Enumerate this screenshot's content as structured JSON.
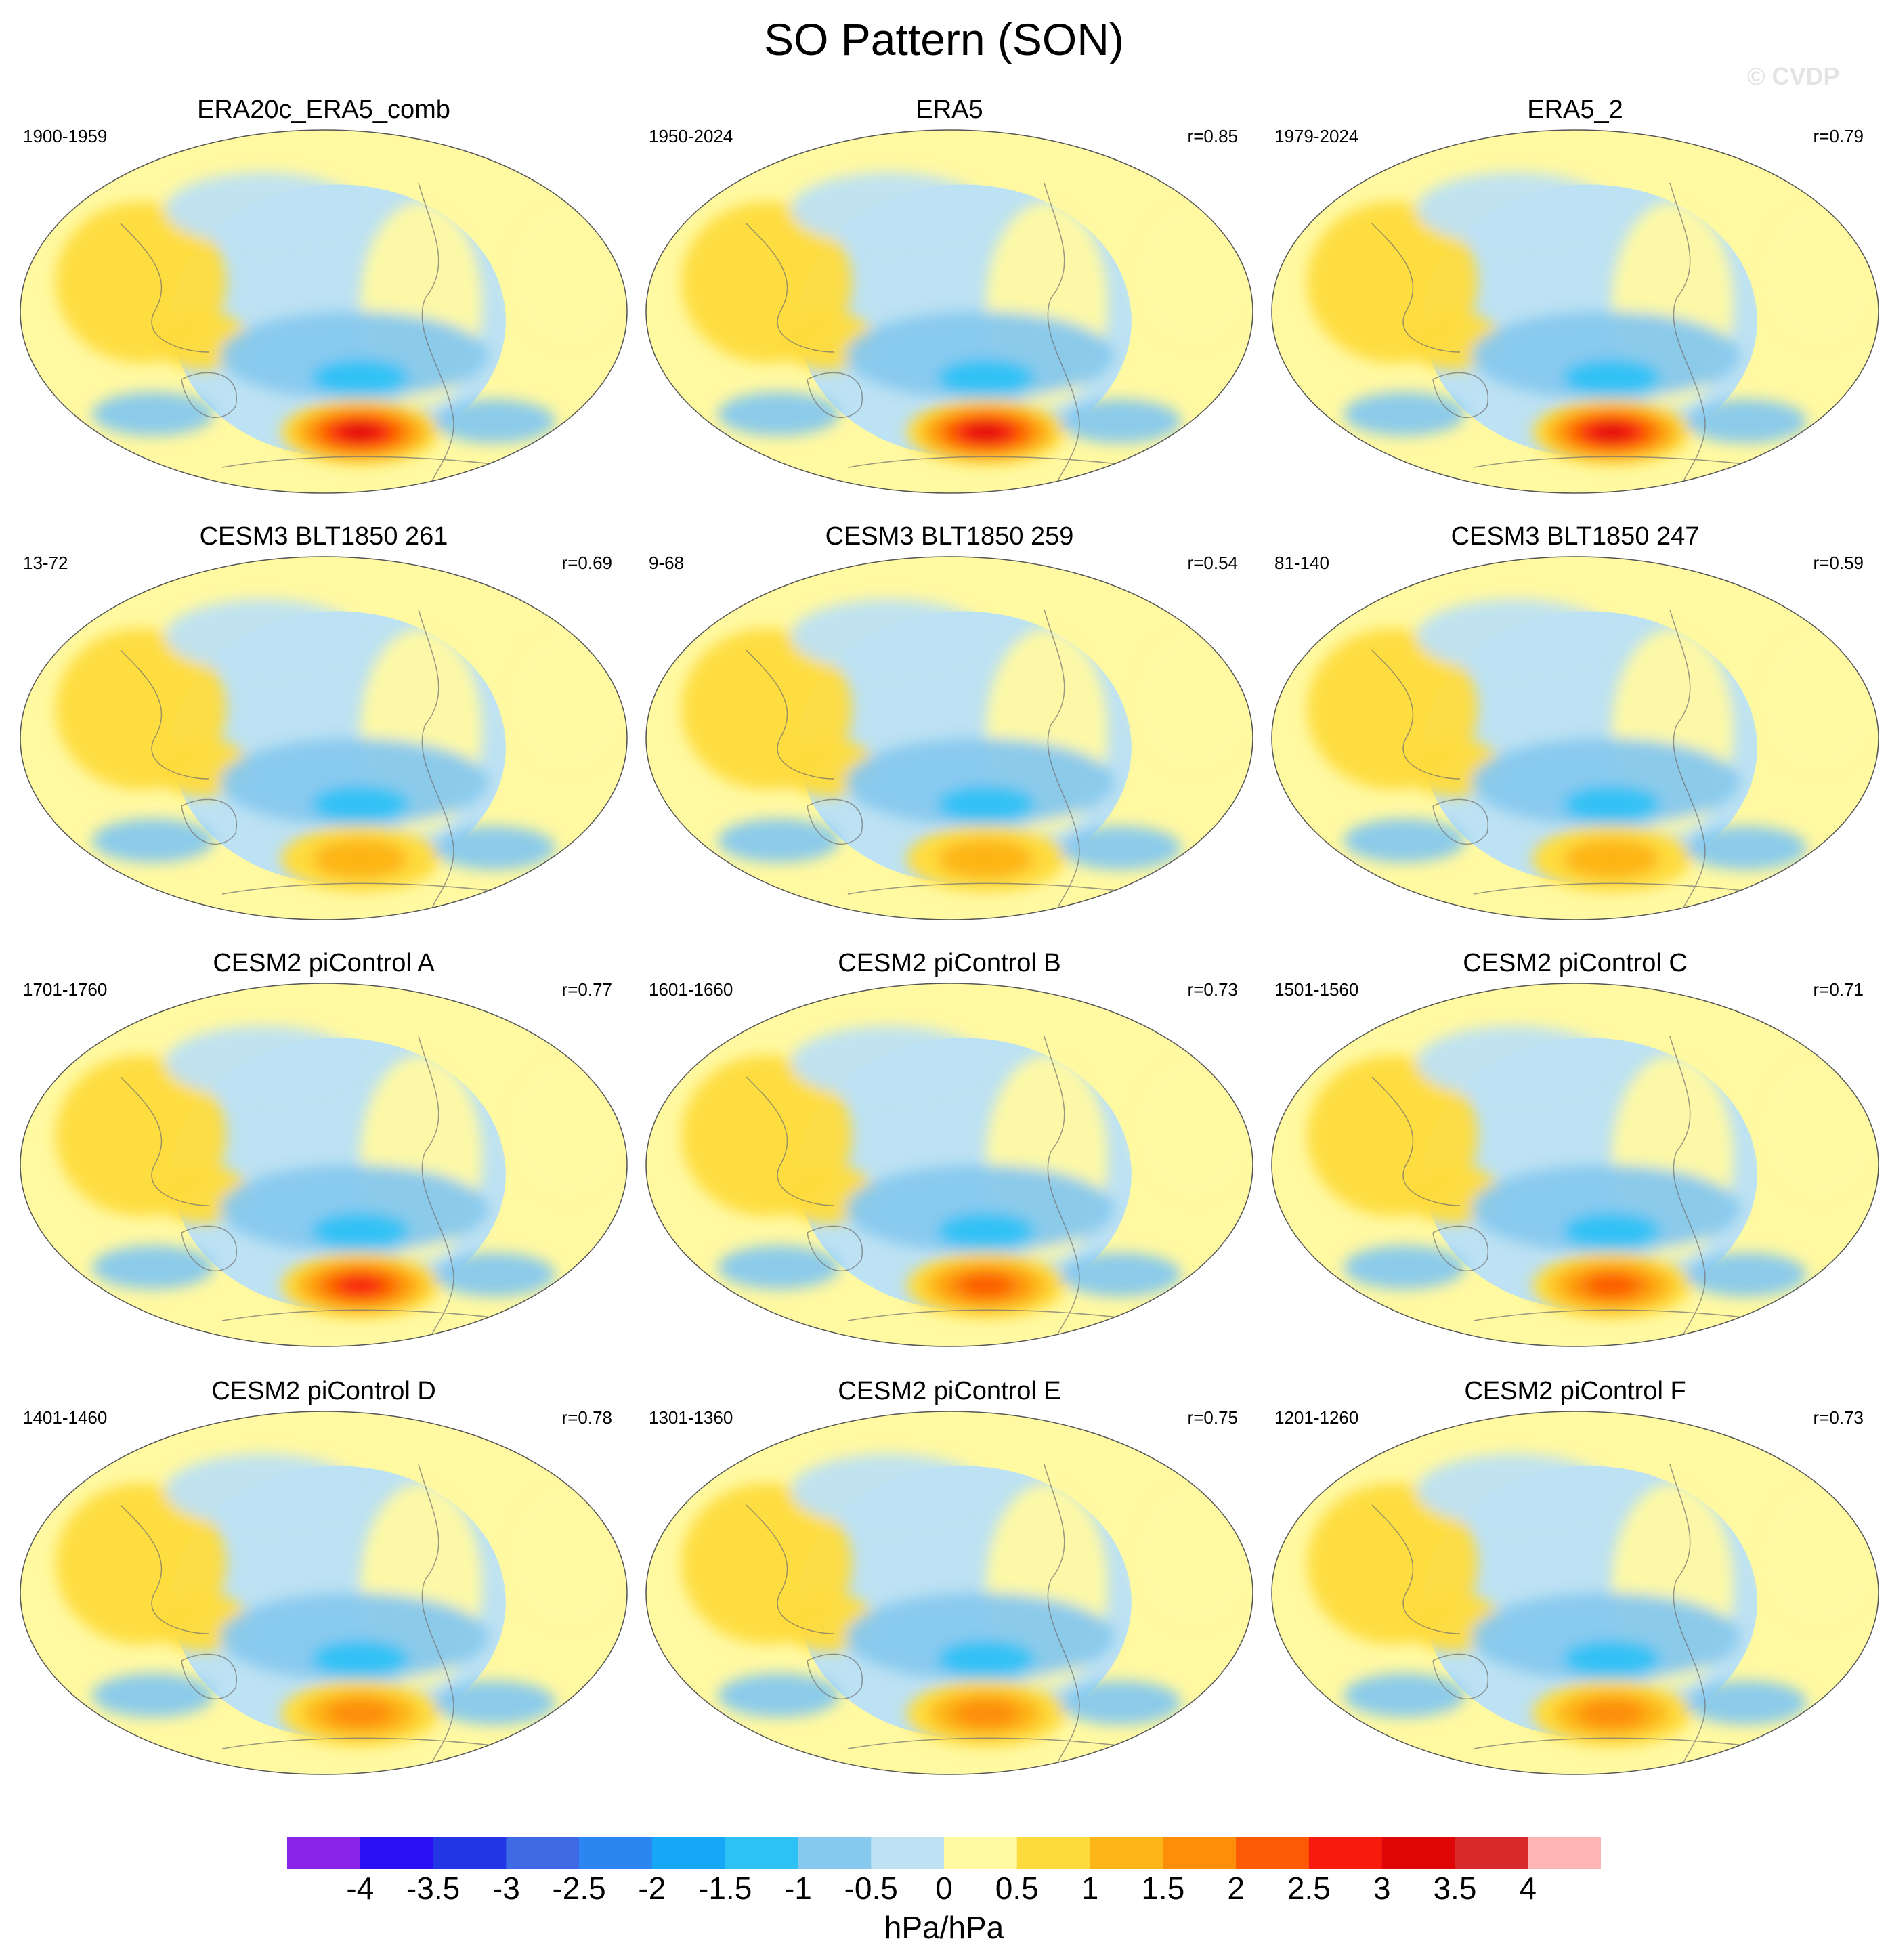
{
  "title": "SO Pattern (SON)",
  "watermark": "© CVDP",
  "chart_data": {
    "type": "heatmap",
    "projection": "Robinson (Pacific-centered)",
    "variable": "SO sea-level-pressure regression pattern, SON",
    "colorbar": {
      "units": "hPa/hPa",
      "levels": [
        -4,
        -3.5,
        -3,
        -2.5,
        -2,
        -1.5,
        -1,
        -0.5,
        0,
        0.5,
        1,
        1.5,
        2,
        2.5,
        3,
        3.5,
        4
      ],
      "tick_labels": [
        "-4",
        "-3.5",
        "-3",
        "-2.5",
        "-2",
        "-1.5",
        "-1",
        "-0.5",
        "0",
        "0.5",
        "1",
        "1.5",
        "2",
        "2.5",
        "3",
        "3.5",
        "4"
      ],
      "colors": [
        "#8a25e8",
        "#2a10f5",
        "#2236e6",
        "#3e6ae6",
        "#2b86f2",
        "#16a8f6",
        "#2ec1f6",
        "#86c8ee",
        "#bde2f3",
        "#fff9a2",
        "#fedb3c",
        "#fdb518",
        "#fd8e09",
        "#fc5a04",
        "#f71a0d",
        "#df0608",
        "#d82a2a",
        "#fdb4b4"
      ]
    },
    "panels": [
      {
        "title": "ERA20c_ERA5_comb",
        "years": "1900-1959",
        "r": "",
        "max": 3.5
      },
      {
        "title": "ERA5",
        "years": "1950-2024",
        "r": "r=0.85",
        "max": 3.5
      },
      {
        "title": "ERA5_2",
        "years": "1979-2024",
        "r": "r=0.79",
        "max": 3.5
      },
      {
        "title": "CESM3 BLT1850 261",
        "years": "13-72",
        "r": "r=0.69",
        "max": 1.5
      },
      {
        "title": "CESM3 BLT1850 259",
        "years": "9-68",
        "r": "r=0.54",
        "max": 1.5
      },
      {
        "title": "CESM3 BLT1850 247",
        "years": "81-140",
        "r": "r=0.59",
        "max": 1.5
      },
      {
        "title": "CESM2 piControl A",
        "years": "1701-1760",
        "r": "r=0.77",
        "max": 3.0
      },
      {
        "title": "CESM2 piControl B",
        "years": "1601-1660",
        "r": "r=0.73",
        "max": 2.5
      },
      {
        "title": "CESM2 piControl C",
        "years": "1501-1560",
        "r": "r=0.71",
        "max": 2.5
      },
      {
        "title": "CESM2 piControl D",
        "years": "1401-1460",
        "r": "r=0.78",
        "max": 2.0
      },
      {
        "title": "CESM2 piControl E",
        "years": "1301-1360",
        "r": "r=0.75",
        "max": 2.0
      },
      {
        "title": "CESM2 piControl F",
        "years": "1201-1260",
        "r": "r=0.73",
        "max": 2.0
      }
    ]
  }
}
